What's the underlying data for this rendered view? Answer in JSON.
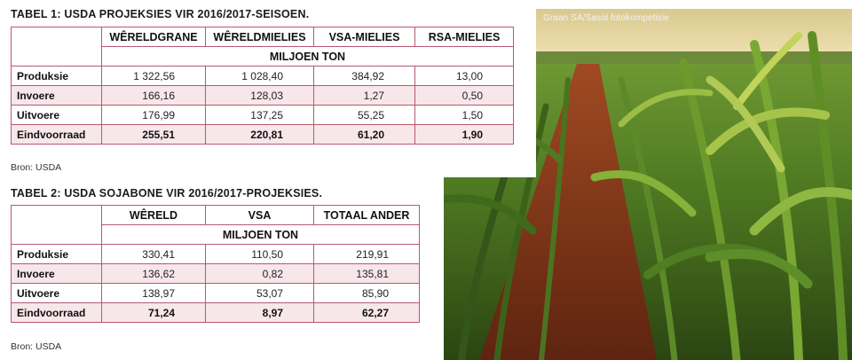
{
  "table1": {
    "title": "TABEL 1: USDA PROJEKSIES VIR 2016/2017-SEISOEN.",
    "columns": [
      "WÊRELDGRANE",
      "WÊRELDMIELIES",
      "VSA-MIELIES",
      "RSA-MIELIES"
    ],
    "unit": "MILJOEN TON",
    "rows": [
      {
        "label": "Produksie",
        "values": [
          "1 322,56",
          "1 028,40",
          "384,92",
          "13,00"
        ]
      },
      {
        "label": "Invoere",
        "values": [
          "166,16",
          "128,03",
          "1,27",
          "0,50"
        ]
      },
      {
        "label": "Uitvoere",
        "values": [
          "176,99",
          "137,25",
          "55,25",
          "1,50"
        ]
      },
      {
        "label": "Eindvoorraad",
        "values": [
          "255,51",
          "220,81",
          "61,20",
          "1,90"
        ]
      }
    ],
    "source": "Bron: USDA"
  },
  "table2": {
    "title": "TABEL 2: USDA SOJABONE VIR 2016/2017-PROJEKSIES.",
    "columns": [
      "WÊRELD",
      "VSA",
      "TOTAAL ANDER"
    ],
    "unit": "MILJOEN TON",
    "rows": [
      {
        "label": "Produksie",
        "values": [
          "330,41",
          "110,50",
          "219,91"
        ]
      },
      {
        "label": "Invoere",
        "values": [
          "136,62",
          "0,82",
          "135,81"
        ]
      },
      {
        "label": "Uitvoere",
        "values": [
          "138,97",
          "53,07",
          "85,90"
        ]
      },
      {
        "label": "Eindvoorraad",
        "values": [
          "71,24",
          "8,97",
          "62,27"
        ]
      }
    ],
    "source": "Bron: USDA"
  },
  "photo": {
    "caption": "Graan SA/Sasol fotokompetisie",
    "colors": {
      "sky": "#e8d7a2",
      "leaf": "#6f9a2a",
      "leaf_dark": "#3d5e1a",
      "soil": "#8a3b1e"
    }
  }
}
